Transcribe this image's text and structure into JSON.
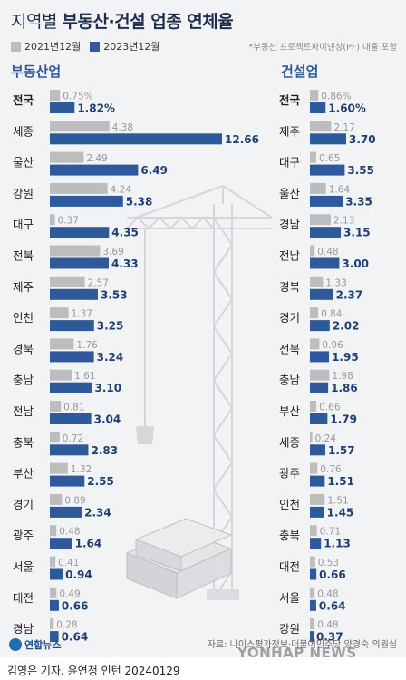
{
  "header": {
    "title_light": "지역별",
    "title_bold": "부동산·건설 업종 연체율",
    "note": "*부동산 프로젝트파이낸싱(PF) 대출 포함"
  },
  "legend": [
    {
      "label": "2021년12월",
      "color": "#bdbdbd"
    },
    {
      "label": "2023년12월",
      "color": "#2e5a9c"
    }
  ],
  "footer": {
    "source": "자료: 나이스평가정보·더불어민주당 양경숙 의원실",
    "logo": "연합뉴스",
    "watermark": "YONHAP NEWS",
    "credit": "김영은 기자. 윤연정 인턴  20240129"
  },
  "chart_data": [
    {
      "type": "bar",
      "title": "부동산업",
      "categories": [
        "전국",
        "세종",
        "울산",
        "강원",
        "대구",
        "전북",
        "제주",
        "인천",
        "경북",
        "충남",
        "전남",
        "충북",
        "부산",
        "경기",
        "광주",
        "서울",
        "대전",
        "경남"
      ],
      "series": [
        {
          "name": "2021년12월",
          "color": "#bdbdbd",
          "values": [
            0.75,
            4.38,
            2.49,
            4.24,
            0.37,
            3.69,
            2.57,
            1.37,
            1.76,
            1.61,
            0.81,
            0.72,
            1.32,
            0.89,
            0.48,
            0.41,
            0.49,
            0.28
          ],
          "labels": [
            "0.75%",
            "4.38",
            "2.49",
            "4.24",
            "0.37",
            "3.69",
            "2.57",
            "1.37",
            "1.76",
            "1.61",
            "0.81",
            "0.72",
            "1.32",
            "0.89",
            "0.48",
            "0.41",
            "0.49",
            "0.28"
          ]
        },
        {
          "name": "2023년12월",
          "color": "#2e5a9c",
          "values": [
            1.82,
            12.66,
            6.49,
            5.38,
            4.35,
            4.33,
            3.53,
            3.25,
            3.24,
            3.1,
            3.04,
            2.83,
            2.55,
            2.34,
            1.64,
            0.94,
            0.66,
            0.64
          ],
          "labels": [
            "1.82%",
            "12.66",
            "6.49",
            "5.38",
            "4.35",
            "4.33",
            "3.53",
            "3.25",
            "3.24",
            "3.10",
            "3.04",
            "2.83",
            "2.55",
            "2.34",
            "1.64",
            "0.94",
            "0.66",
            "0.64"
          ]
        }
      ],
      "unit": "%"
    },
    {
      "type": "bar",
      "title": "건설업",
      "categories": [
        "전국",
        "제주",
        "대구",
        "울산",
        "경남",
        "전남",
        "경북",
        "경기",
        "전북",
        "충남",
        "부산",
        "세종",
        "광주",
        "인천",
        "충북",
        "대전",
        "서울",
        "강원"
      ],
      "series": [
        {
          "name": "2021년12월",
          "color": "#bdbdbd",
          "values": [
            0.86,
            2.17,
            0.65,
            1.64,
            2.13,
            0.48,
            1.33,
            0.84,
            0.96,
            1.98,
            0.66,
            0.24,
            0.76,
            1.51,
            0.71,
            0.53,
            0.48,
            0.48
          ],
          "labels": [
            "0.86%",
            "2.17",
            "0.65",
            "1.64",
            "2.13",
            "0.48",
            "1.33",
            "0.84",
            "0.96",
            "1.98",
            "0.66",
            "0.24",
            "0.76",
            "1.51",
            "0.71",
            "0.53",
            "0.48",
            "0.48"
          ]
        },
        {
          "name": "2023년12월",
          "color": "#2e5a9c",
          "values": [
            1.6,
            3.7,
            3.55,
            3.35,
            3.15,
            3.0,
            2.37,
            2.02,
            1.95,
            1.86,
            1.79,
            1.57,
            1.51,
            1.45,
            1.13,
            0.66,
            0.64,
            0.37
          ],
          "labels": [
            "1.60%",
            "3.70",
            "3.55",
            "3.35",
            "3.15",
            "3.00",
            "2.37",
            "2.02",
            "1.95",
            "1.86",
            "1.79",
            "1.57",
            "1.51",
            "1.45",
            "1.13",
            "0.66",
            "0.64",
            "0.37"
          ]
        }
      ],
      "unit": "%"
    }
  ]
}
